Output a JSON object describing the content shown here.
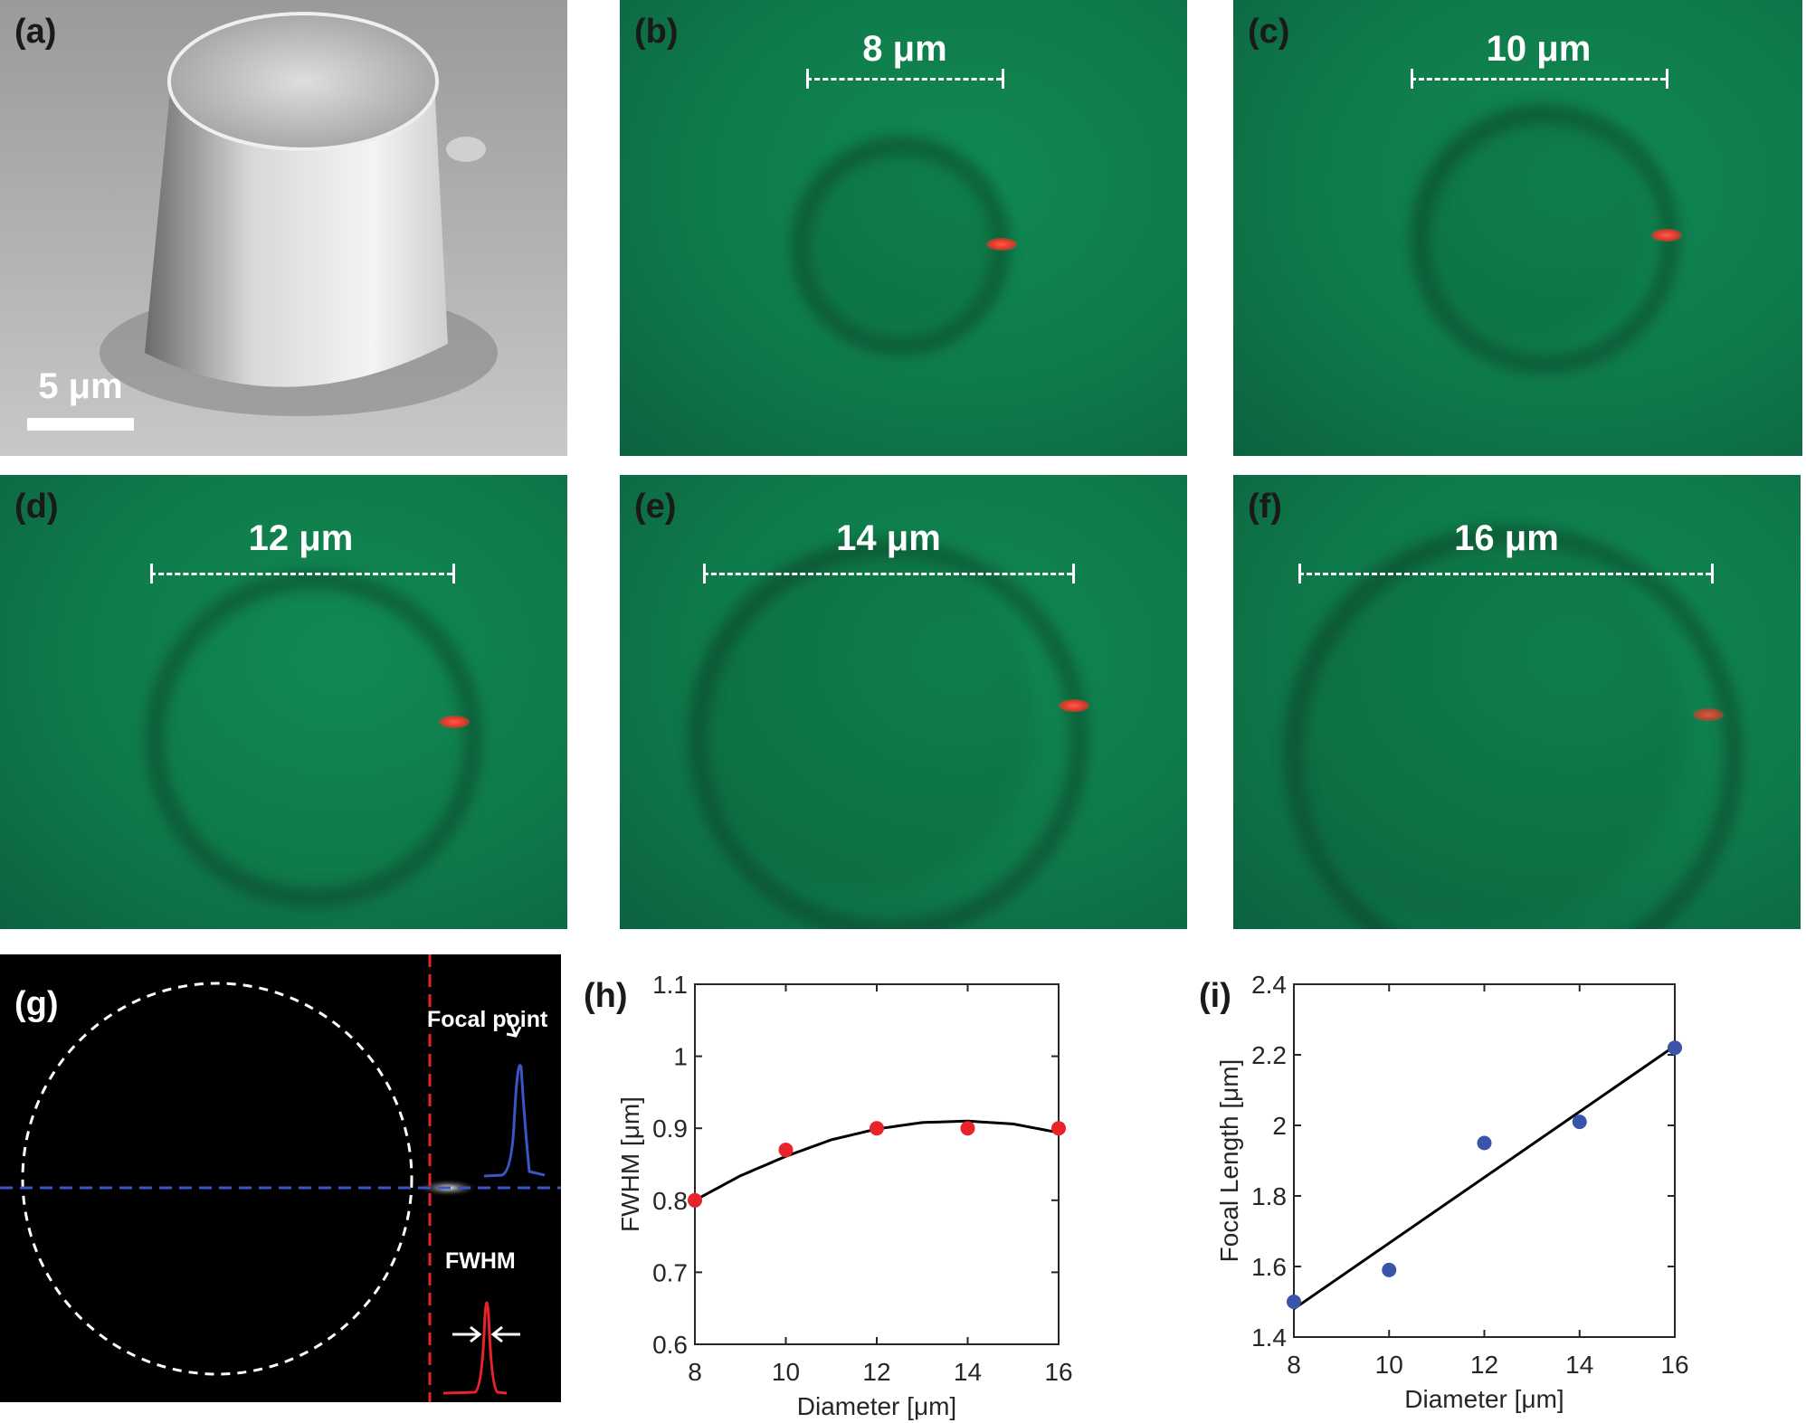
{
  "panels": {
    "a": {
      "label": "(a)",
      "scale_bar": "5 μm"
    },
    "b": {
      "label": "(b)",
      "diameter": "8 μm"
    },
    "c": {
      "label": "(c)",
      "diameter": "10 μm"
    },
    "d": {
      "label": "(d)",
      "diameter": "12 μm"
    },
    "e": {
      "label": "(e)",
      "diameter": "14 μm"
    },
    "f": {
      "label": "(f)",
      "diameter": "16 μm"
    },
    "g": {
      "label": "(g)",
      "focal_point": "Focal point",
      "fwhm": "FWHM"
    },
    "h": {
      "label": "(h)"
    },
    "i": {
      "label": "(i)"
    }
  },
  "colors": {
    "red_marker": "#e8232a",
    "blue_marker": "#3a55a8",
    "fit_line": "#000000",
    "microscope_green": "#0f7a4a"
  },
  "chart_data": [
    {
      "type": "scatter",
      "panel": "h",
      "xlabel": "Diameter [μm]",
      "ylabel": "FWHM [μm]",
      "xlim": [
        8,
        16
      ],
      "ylim": [
        0.6,
        1.1
      ],
      "xticks": [
        "8",
        "10",
        "12",
        "14",
        "16"
      ],
      "yticks": [
        "0.6",
        "0.7",
        "0.8",
        "0.9",
        "1",
        "1.1"
      ],
      "grid": false,
      "x": [
        8,
        10,
        12,
        14,
        16
      ],
      "y": [
        0.8,
        0.87,
        0.9,
        0.9,
        0.9
      ],
      "marker_color": "#e8232a",
      "fit": {
        "type": "quadratic",
        "x": [
          8,
          9,
          10,
          11,
          12,
          13,
          14,
          15,
          16
        ],
        "y": [
          0.8,
          0.834,
          0.861,
          0.884,
          0.899,
          0.908,
          0.91,
          0.906,
          0.894
        ]
      }
    },
    {
      "type": "scatter",
      "panel": "i",
      "xlabel": "Diameter [μm]",
      "ylabel": "Focal Length [μm]",
      "xlim": [
        8,
        16
      ],
      "ylim": [
        1.4,
        2.4
      ],
      "xticks": [
        "8",
        "10",
        "12",
        "14",
        "16"
      ],
      "yticks": [
        "1.4",
        "1.6",
        "1.8",
        "2",
        "2.2",
        "2.4"
      ],
      "grid": false,
      "x": [
        8,
        10,
        12,
        14,
        16
      ],
      "y": [
        1.5,
        1.59,
        1.95,
        2.01,
        2.22
      ],
      "marker_color": "#3a55a8",
      "fit": {
        "type": "linear",
        "x": [
          8,
          16
        ],
        "y": [
          1.48,
          2.225
        ]
      }
    }
  ]
}
